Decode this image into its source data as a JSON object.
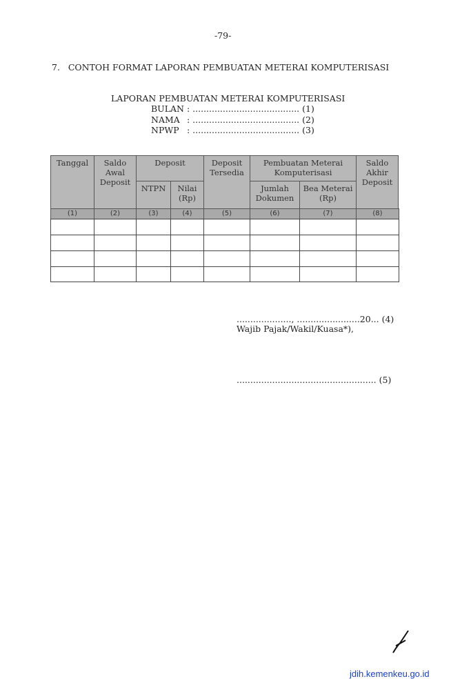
{
  "page_number": "-79-",
  "section_title": "7.   CONTOH FORMAT LAPORAN PEMBUATAN METERAI KOMPUTERISASI",
  "report": {
    "title": "LAPORAN PEMBUATAN METERAI KOMPUTERISASI",
    "fields": [
      {
        "label": "BULAN",
        "value": ": ....................................... (1)"
      },
      {
        "label": "NAMA",
        "value": ": ....................................... (2)"
      },
      {
        "label": "NPWP",
        "value": ": ....................................... (3)"
      }
    ]
  },
  "table": {
    "headers": {
      "tanggal": "Tanggal",
      "saldo_awal": "Saldo Awal Deposit",
      "deposit": "Deposit",
      "ntpn": "NTPN",
      "nilai": "Nilai (Rp)",
      "deposit_tersedia": "Deposit Tersedia",
      "pembuatan": "Pembuatan Meterai Komputerisasi",
      "jumlah": "Jumlah Dokumen",
      "bea": "Bea Meterai (Rp)",
      "saldo_akhir": "Saldo Akhir Deposit"
    },
    "numbers": [
      "(1)",
      "(2)",
      "(3)",
      "(4)",
      "(5)",
      "(6)",
      "(7)",
      "(8)"
    ]
  },
  "signature": {
    "date_line": "...................., .......................20... (4)",
    "role": "Wajib Pajak/Wakil/Kuasa*),",
    "name_line": "................................................... (5)"
  },
  "footer_link": "jdih.kemenkeu.go.id"
}
